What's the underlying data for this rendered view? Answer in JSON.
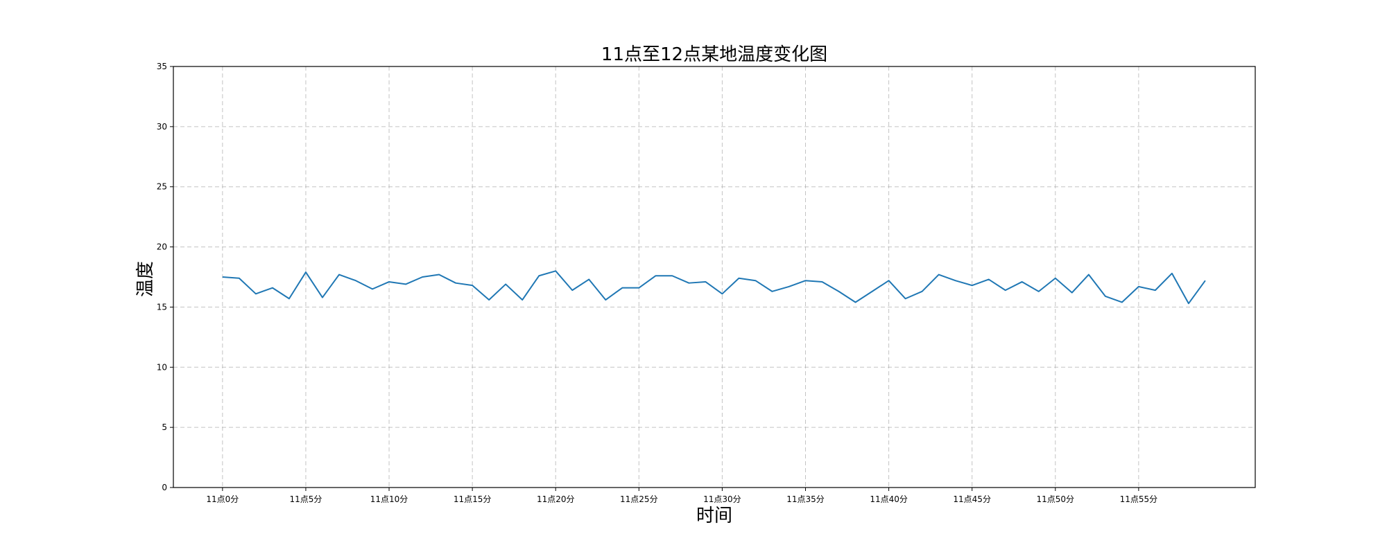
{
  "chart_data": {
    "type": "line",
    "title": "11点至12点某地温度变化图",
    "xlabel": "时间",
    "ylabel": "温度",
    "ylim": [
      0,
      35
    ],
    "yticks": [
      0,
      5,
      10,
      15,
      20,
      25,
      30,
      35
    ],
    "xticks": [
      {
        "x": 0,
        "label": "11点0分"
      },
      {
        "x": 5,
        "label": "11点5分"
      },
      {
        "x": 10,
        "label": "11点10分"
      },
      {
        "x": 15,
        "label": "11点15分"
      },
      {
        "x": 20,
        "label": "11点20分"
      },
      {
        "x": 25,
        "label": "11点25分"
      },
      {
        "x": 30,
        "label": "11点30分"
      },
      {
        "x": 35,
        "label": "11点35分"
      },
      {
        "x": 40,
        "label": "11点40分"
      },
      {
        "x": 45,
        "label": "11点45分"
      },
      {
        "x": 50,
        "label": "11点50分"
      },
      {
        "x": 55,
        "label": "11点55分"
      }
    ],
    "grid": true,
    "series": [
      {
        "color": "#1f77b4",
        "values": [
          17.5,
          17.4,
          16.1,
          16.6,
          15.7,
          17.9,
          15.8,
          17.7,
          17.2,
          16.5,
          17.1,
          16.9,
          17.5,
          17.7,
          17.0,
          16.8,
          15.6,
          16.9,
          15.6,
          17.6,
          18.0,
          16.4,
          17.3,
          15.6,
          16.6,
          16.6,
          17.6,
          17.6,
          17.0,
          17.1,
          16.1,
          17.4,
          17.2,
          16.3,
          16.7,
          17.2,
          17.1,
          16.3,
          15.4,
          16.3,
          17.2,
          15.7,
          16.3,
          17.7,
          17.2,
          16.8,
          17.3,
          16.4,
          17.1,
          16.3,
          17.4,
          16.2,
          17.7,
          15.9,
          15.4,
          16.7,
          16.4,
          17.8,
          15.3,
          17.2
        ]
      }
    ]
  }
}
